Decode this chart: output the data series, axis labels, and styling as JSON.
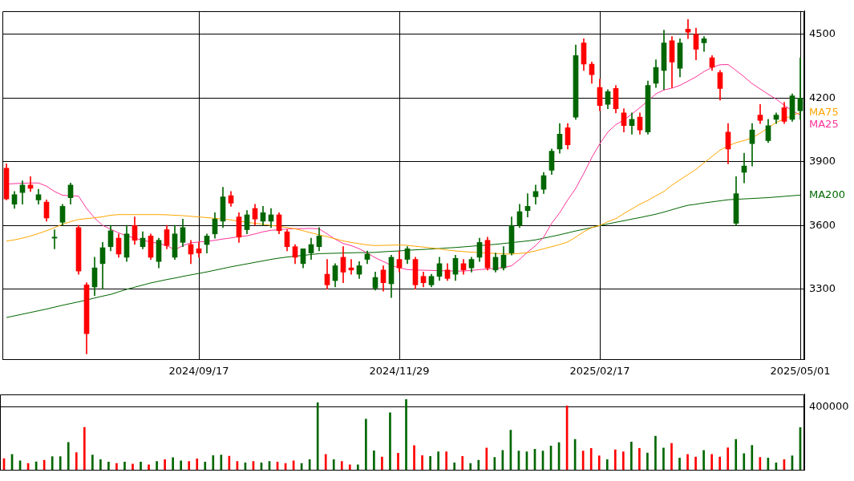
{
  "chart_data": [
    {
      "type": "candlestick",
      "categories": [
        null,
        null,
        null,
        null,
        null,
        null,
        null,
        null,
        null,
        null,
        null,
        null,
        null,
        null,
        null,
        null,
        null,
        null,
        null,
        null,
        null,
        null,
        null,
        null,
        "2024/09/17",
        null,
        null,
        null,
        null,
        null,
        null,
        null,
        null,
        null,
        null,
        null,
        null,
        null,
        null,
        null,
        null,
        null,
        null,
        null,
        null,
        null,
        null,
        null,
        null,
        "2024/11/29",
        null,
        null,
        null,
        null,
        null,
        null,
        null,
        null,
        null,
        null,
        null,
        null,
        null,
        null,
        null,
        null,
        null,
        null,
        null,
        null,
        null,
        null,
        null,
        null,
        "2025/02/17",
        null,
        null,
        null,
        null,
        null,
        null,
        null,
        null,
        null,
        null,
        null,
        null,
        null,
        null,
        null,
        null,
        null,
        null,
        null,
        null,
        null,
        null,
        null,
        null,
        "2025/05/01"
      ],
      "ohlc": [
        [
          3870,
          3890,
          3720,
          3725
        ],
        [
          3700,
          3760,
          3680,
          3745
        ],
        [
          3755,
          3810,
          3700,
          3790
        ],
        [
          3790,
          3830,
          3760,
          3775
        ],
        [
          3720,
          3770,
          3700,
          3745
        ],
        [
          3710,
          3720,
          3620,
          3635
        ],
        [
          3540,
          3580,
          3490,
          3545
        ],
        [
          3615,
          3700,
          3600,
          3690
        ],
        [
          3730,
          3800,
          3700,
          3790
        ],
        [
          3590,
          3600,
          3370,
          3385
        ],
        [
          3320,
          3330,
          2995,
          3090
        ],
        [
          3310,
          3450,
          3270,
          3400
        ],
        [
          3420,
          3520,
          3300,
          3495
        ],
        [
          3500,
          3600,
          3480,
          3575
        ],
        [
          3540,
          3560,
          3450,
          3465
        ],
        [
          3450,
          3600,
          3430,
          3560
        ],
        [
          3600,
          3640,
          3510,
          3530
        ],
        [
          3500,
          3570,
          3490,
          3540
        ],
        [
          3550,
          3560,
          3440,
          3450
        ],
        [
          3430,
          3540,
          3400,
          3530
        ],
        [
          3580,
          3600,
          3490,
          3505
        ],
        [
          3450,
          3600,
          3440,
          3560
        ],
        [
          3520,
          3630,
          3500,
          3590
        ],
        [
          3510,
          3530,
          3420,
          3465
        ],
        [
          3490,
          3520,
          3450,
          3470
        ],
        [
          3510,
          3560,
          3470,
          3550
        ],
        [
          3560,
          3660,
          3540,
          3630
        ],
        [
          3620,
          3780,
          3590,
          3735
        ],
        [
          3740,
          3760,
          3690,
          3705
        ],
        [
          3640,
          3660,
          3520,
          3545
        ],
        [
          3580,
          3670,
          3560,
          3650
        ],
        [
          3680,
          3700,
          3600,
          3630
        ],
        [
          3620,
          3690,
          3600,
          3660
        ],
        [
          3620,
          3680,
          3590,
          3650
        ],
        [
          3650,
          3660,
          3560,
          3575
        ],
        [
          3570,
          3580,
          3480,
          3500
        ],
        [
          3500,
          3510,
          3420,
          3450
        ],
        [
          3420,
          3490,
          3400,
          3490
        ],
        [
          3470,
          3540,
          3440,
          3510
        ],
        [
          3500,
          3590,
          3480,
          3550
        ],
        [
          3370,
          3440,
          3300,
          3320
        ],
        [
          3340,
          3420,
          3310,
          3410
        ],
        [
          3450,
          3500,
          3330,
          3380
        ],
        [
          3400,
          3440,
          3370,
          3390
        ],
        [
          3370,
          3430,
          3350,
          3410
        ],
        [
          3440,
          3480,
          3420,
          3465
        ],
        [
          3305,
          3380,
          3295,
          3355
        ],
        [
          3390,
          3410,
          3290,
          3330
        ],
        [
          3325,
          3460,
          3260,
          3450
        ],
        [
          3440,
          3480,
          3380,
          3400
        ],
        [
          3440,
          3500,
          3420,
          3490
        ],
        [
          3440,
          3450,
          3300,
          3320
        ],
        [
          3360,
          3380,
          3310,
          3330
        ],
        [
          3320,
          3370,
          3310,
          3360
        ],
        [
          3360,
          3450,
          3340,
          3420
        ],
        [
          3390,
          3420,
          3340,
          3350
        ],
        [
          3370,
          3460,
          3340,
          3445
        ],
        [
          3420,
          3440,
          3370,
          3390
        ],
        [
          3400,
          3450,
          3380,
          3440
        ],
        [
          3450,
          3540,
          3430,
          3520
        ],
        [
          3530,
          3545,
          3390,
          3400
        ],
        [
          3390,
          3470,
          3380,
          3450
        ],
        [
          3400,
          3500,
          3390,
          3460
        ],
        [
          3470,
          3640,
          3460,
          3600
        ],
        [
          3600,
          3700,
          3590,
          3665
        ],
        [
          3670,
          3750,
          3640,
          3690
        ],
        [
          3735,
          3790,
          3700,
          3760
        ],
        [
          3770,
          3850,
          3750,
          3835
        ],
        [
          3860,
          3960,
          3840,
          3950
        ],
        [
          3960,
          4080,
          3940,
          4030
        ],
        [
          4060,
          4080,
          3960,
          3980
        ],
        [
          4110,
          4450,
          4100,
          4400
        ],
        [
          4460,
          4480,
          4330,
          4360
        ],
        [
          4360,
          4370,
          4270,
          4310
        ],
        [
          4250,
          4290,
          4140,
          4165
        ],
        [
          4170,
          4240,
          4150,
          4230
        ],
        [
          4245,
          4260,
          4130,
          4150
        ],
        [
          4130,
          4150,
          4040,
          4070
        ],
        [
          4070,
          4130,
          4030,
          4100
        ],
        [
          4110,
          4130,
          4030,
          4050
        ],
        [
          4040,
          4280,
          4030,
          4260
        ],
        [
          4270,
          4380,
          4250,
          4345
        ],
        [
          4330,
          4520,
          4240,
          4460
        ],
        [
          4470,
          4490,
          4250,
          4370
        ],
        [
          4340,
          4480,
          4300,
          4460
        ],
        [
          4525,
          4570,
          4480,
          4510
        ],
        [
          4500,
          4530,
          4380,
          4430
        ],
        [
          4460,
          4490,
          4420,
          4480
        ],
        [
          4390,
          4400,
          4330,
          4345
        ],
        [
          4320,
          4330,
          4190,
          4245
        ],
        [
          4040,
          4080,
          3890,
          3960
        ],
        [
          3610,
          3830,
          3600,
          3750
        ],
        [
          3850,
          3940,
          3800,
          3880
        ],
        [
          3985,
          4080,
          3880,
          4050
        ],
        [
          4120,
          4170,
          4080,
          4095
        ],
        [
          4000,
          4100,
          3990,
          4070
        ],
        [
          4100,
          4130,
          4080,
          4120
        ],
        [
          4155,
          4180,
          4080,
          4090
        ],
        [
          4100,
          4220,
          4090,
          4210
        ],
        [
          4140,
          4390,
          4100,
          4200
        ]
      ],
      "colors": [
        "#ff0000",
        "#006600",
        "#006600",
        "#ff0000",
        "#006600",
        "#ff0000",
        "#006600",
        "#006600",
        "#006600",
        "#ff0000",
        "#ff0000",
        "#006600",
        "#006600",
        "#006600",
        "#ff0000",
        "#006600",
        "#ff0000",
        "#006600",
        "#ff0000",
        "#006600",
        "#ff0000",
        "#006600",
        "#006600",
        "#ff0000",
        "#ff0000",
        "#006600",
        "#006600",
        "#006600",
        "#ff0000",
        "#ff0000",
        "#006600",
        "#ff0000",
        "#006600",
        "#006600",
        "#ff0000",
        "#ff0000",
        "#ff0000",
        "#006600",
        "#006600",
        "#006600",
        "#ff0000",
        "#006600",
        "#ff0000",
        "#ff0000",
        "#006600",
        "#006600",
        "#006600",
        "#ff0000",
        "#006600",
        "#ff0000",
        "#006600",
        "#ff0000",
        "#ff0000",
        "#006600",
        "#006600",
        "#ff0000",
        "#006600",
        "#ff0000",
        "#006600",
        "#006600",
        "#ff0000",
        "#006600",
        "#006600",
        "#006600",
        "#006600",
        "#006600",
        "#006600",
        "#006600",
        "#006600",
        "#006600",
        "#ff0000",
        "#006600",
        "#ff0000",
        "#ff0000",
        "#ff0000",
        "#006600",
        "#ff0000",
        "#ff0000",
        "#006600",
        "#ff0000",
        "#006600",
        "#006600",
        "#006600",
        "#ff0000",
        "#006600",
        "#ff0000",
        "#ff0000",
        "#006600",
        "#ff0000",
        "#ff0000",
        "#ff0000",
        "#006600",
        "#006600",
        "#006600",
        "#ff0000",
        "#006600",
        "#006600",
        "#ff0000",
        "#006600",
        "#006600"
      ],
      "series": [
        {
          "type": "line",
          "name": "MA75",
          "color": "#ffa500",
          "values": [
            3526,
            3532,
            3540,
            3550,
            3562,
            3575,
            3590,
            3605,
            3618,
            3628,
            3632,
            3636,
            3641,
            3648,
            3651,
            3651,
            3651,
            3651,
            3651,
            3651,
            3650,
            3648,
            3646,
            3643,
            3640,
            3637,
            3633,
            3630,
            3626,
            3620,
            3615,
            3610,
            3605,
            3600,
            3596,
            3590,
            3584,
            3575,
            3565,
            3556,
            3547,
            3537,
            3527,
            3520,
            3514,
            3508,
            3505,
            3506,
            3507,
            3508,
            3506,
            3502,
            3498,
            3494,
            3489,
            3484,
            3480,
            3477,
            3474,
            3472,
            3470,
            3468,
            3466,
            3465,
            3468,
            3472,
            3480,
            3490,
            3500,
            3510,
            3522,
            3545,
            3570,
            3590,
            3600,
            3618,
            3632,
            3656,
            3678,
            3700,
            3718,
            3740,
            3760,
            3790,
            3815,
            3840,
            3865,
            3895,
            3925,
            3955,
            3975,
            3990,
            4000,
            4013,
            4035,
            4060,
            4085,
            4102,
            4118,
            4132
          ]
        },
        {
          "type": "line",
          "name": "MA25",
          "color": "#ff3399",
          "values": [
            3795,
            3797,
            3799,
            3800,
            3800,
            3785,
            3760,
            3742,
            3740,
            3738,
            3680,
            3635,
            3600,
            3582,
            3565,
            3551,
            3540,
            3530,
            3522,
            3515,
            3505,
            3485,
            3505,
            3518,
            3522,
            3525,
            3530,
            3536,
            3541,
            3547,
            3551,
            3560,
            3570,
            3577,
            3580,
            3583,
            3585,
            3585,
            3586,
            3584,
            3560,
            3535,
            3515,
            3505,
            3490,
            3470,
            3448,
            3430,
            3412,
            3400,
            3392,
            3390,
            3389,
            3388,
            3387,
            3386,
            3385,
            3385,
            3388,
            3392,
            3395,
            3398,
            3401,
            3410,
            3440,
            3475,
            3505,
            3545,
            3610,
            3660,
            3720,
            3775,
            3845,
            3920,
            3985,
            4040,
            4075,
            4097,
            4125,
            4155,
            4187,
            4220,
            4238,
            4247,
            4260,
            4280,
            4300,
            4325,
            4345,
            4357,
            4358,
            4330,
            4300,
            4268,
            4243,
            4218,
            4195,
            4166,
            4140,
            4120
          ]
        },
        {
          "type": "line",
          "name": "MA200",
          "color": "#006600",
          "values": [
            3166,
            3174,
            3182,
            3190,
            3198,
            3206,
            3215,
            3224,
            3232,
            3240,
            3249,
            3258,
            3267,
            3275,
            3287,
            3299,
            3309,
            3319,
            3329,
            3337,
            3345,
            3352,
            3360,
            3367,
            3374,
            3381,
            3389,
            3397,
            3405,
            3412,
            3419,
            3426,
            3433,
            3440,
            3446,
            3451,
            3455,
            3459,
            3463,
            3467,
            3468,
            3469,
            3470,
            3471,
            3472,
            3472,
            3473,
            3476,
            3478,
            3480,
            3483,
            3485,
            3487,
            3489,
            3491,
            3494,
            3496,
            3499,
            3502,
            3505,
            3508,
            3511,
            3515,
            3519,
            3523,
            3527,
            3532,
            3540,
            3548,
            3556,
            3565,
            3574,
            3582,
            3590,
            3599,
            3607,
            3615,
            3622,
            3630,
            3637,
            3645,
            3653,
            3663,
            3674,
            3685,
            3695,
            3700,
            3706,
            3711,
            3716,
            3721,
            3723,
            3725,
            3727,
            3729,
            3731,
            3734,
            3737,
            3740,
            3743
          ]
        }
      ],
      "ylim": [
        2970,
        4610
      ],
      "yticks": [
        3300,
        3600,
        3900,
        4200,
        4500
      ],
      "grid": true,
      "marker": "none"
    },
    {
      "type": "bar",
      "categories": [
        null,
        null,
        null,
        null,
        null,
        null,
        null,
        null,
        null,
        null,
        null,
        null,
        null,
        null,
        null,
        null,
        null,
        null,
        null,
        null,
        null,
        null,
        null,
        null,
        "2024/09/17",
        null,
        null,
        null,
        null,
        null,
        null,
        null,
        null,
        null,
        null,
        null,
        null,
        null,
        null,
        null,
        null,
        null,
        null,
        null,
        null,
        null,
        null,
        null,
        null,
        "2024/11/29",
        null,
        null,
        null,
        null,
        null,
        null,
        null,
        null,
        null,
        null,
        null,
        null,
        null,
        null,
        null,
        null,
        null,
        null,
        null,
        null,
        null,
        null,
        null,
        null,
        "2025/02/17",
        null,
        null,
        null,
        null,
        null,
        null,
        null,
        null,
        null,
        null,
        null,
        null,
        null,
        null,
        null,
        null,
        null,
        null,
        null,
        null,
        null,
        null,
        null,
        null,
        "2025/05/01"
      ],
      "values": [
        72000,
        99000,
        58000,
        41000,
        51000,
        62000,
        85000,
        85000,
        175000,
        110000,
        270000,
        95000,
        66000,
        50000,
        41000,
        50000,
        37000,
        50000,
        33000,
        54000,
        66000,
        78000,
        58000,
        54000,
        70000,
        50000,
        91000,
        95000,
        87000,
        54000,
        45000,
        54000,
        45000,
        54000,
        50000,
        41000,
        58000,
        41000,
        66000,
        426000,
        99000,
        66000,
        54000,
        33000,
        33000,
        322000,
        122000,
        82000,
        363000,
        106000,
        447000,
        155000,
        91000,
        86000,
        115000,
        115000,
        45000,
        86000,
        41000,
        62000,
        139000,
        79000,
        124000,
        252000,
        120000,
        115000,
        132000,
        120000,
        152000,
        173000,
        406000,
        194000,
        120000,
        137000,
        90000,
        66000,
        128000,
        115000,
        177000,
        137000,
        107000,
        214000,
        139000,
        169000,
        75000,
        99000,
        82000,
        124000,
        99000,
        82000,
        141000,
        194000,
        103000,
        156000,
        79000,
        75000,
        45000,
        66000,
        90000,
        269000
      ],
      "colors": [
        "#ff0000",
        "#006600",
        "#006600",
        "#ff0000",
        "#006600",
        "#ff0000",
        "#006600",
        "#006600",
        "#006600",
        "#ff0000",
        "#ff0000",
        "#006600",
        "#006600",
        "#006600",
        "#ff0000",
        "#006600",
        "#ff0000",
        "#006600",
        "#ff0000",
        "#006600",
        "#ff0000",
        "#006600",
        "#006600",
        "#ff0000",
        "#ff0000",
        "#006600",
        "#006600",
        "#006600",
        "#ff0000",
        "#ff0000",
        "#006600",
        "#ff0000",
        "#006600",
        "#006600",
        "#ff0000",
        "#ff0000",
        "#ff0000",
        "#006600",
        "#006600",
        "#006600",
        "#ff0000",
        "#006600",
        "#ff0000",
        "#ff0000",
        "#006600",
        "#006600",
        "#006600",
        "#ff0000",
        "#006600",
        "#ff0000",
        "#006600",
        "#ff0000",
        "#ff0000",
        "#006600",
        "#006600",
        "#ff0000",
        "#006600",
        "#ff0000",
        "#006600",
        "#006600",
        "#ff0000",
        "#006600",
        "#006600",
        "#006600",
        "#006600",
        "#006600",
        "#006600",
        "#006600",
        "#006600",
        "#006600",
        "#ff0000",
        "#006600",
        "#ff0000",
        "#ff0000",
        "#ff0000",
        "#006600",
        "#ff0000",
        "#ff0000",
        "#006600",
        "#ff0000",
        "#006600",
        "#006600",
        "#006600",
        "#ff0000",
        "#006600",
        "#ff0000",
        "#ff0000",
        "#006600",
        "#ff0000",
        "#ff0000",
        "#ff0000",
        "#006600",
        "#006600",
        "#006600",
        "#ff0000",
        "#006600",
        "#006600",
        "#ff0000",
        "#006600",
        "#006600"
      ],
      "ylim": [
        0,
        480000
      ],
      "yticks": [
        {
          "value": 0,
          "label": null
        },
        400000
      ],
      "grid": "y",
      "tick_labels": "y"
    }
  ]
}
